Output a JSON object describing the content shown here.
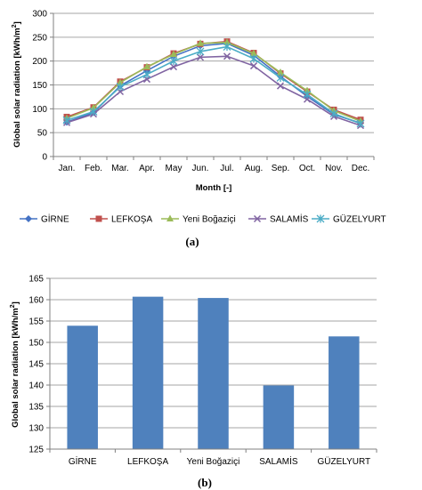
{
  "chart_data": [
    {
      "type": "line",
      "panel_label": "(a)",
      "xlabel": "Month [-]",
      "ylabel": "Global solar radiation [kWh/m²]",
      "ylabel_main": "Global solar radiation  [kWh/m",
      "ylabel_sup": "2",
      "ylabel_end": "]",
      "ylim": [
        0,
        300
      ],
      "yticks": [
        "0",
        "50",
        "100",
        "150",
        "200",
        "250",
        "300"
      ],
      "categories": [
        "Jan.",
        "Feb.",
        "Mar.",
        "Apr.",
        "May",
        "Jun.",
        "Jul.",
        "Aug.",
        "Sep.",
        "Oct.",
        "Nov.",
        "Dec."
      ],
      "grid": "horizontal",
      "legend": "bottom",
      "series": [
        {
          "name": "GİRNE",
          "color": "#4472c4",
          "marker": "diamond",
          "values": [
            72,
            92,
            148,
            180,
            210,
            232,
            237,
            212,
            168,
            126,
            88,
            70
          ]
        },
        {
          "name": "LEFKOŞA",
          "color": "#c0504d",
          "marker": "square",
          "values": [
            83,
            103,
            157,
            187,
            216,
            236,
            241,
            217,
            174,
            136,
            98,
            77
          ]
        },
        {
          "name": "Yeni Boğaziçi",
          "color": "#9bbb59",
          "marker": "triangle",
          "values": [
            80,
            102,
            155,
            188,
            214,
            237,
            239,
            216,
            176,
            138,
            96,
            74
          ]
        },
        {
          "name": "SALAMİS",
          "color": "#8064a2",
          "marker": "x",
          "values": [
            71,
            89,
            136,
            162,
            188,
            208,
            210,
            190,
            148,
            120,
            84,
            65
          ]
        },
        {
          "name": "GÜZELYURT",
          "color": "#4bacc6",
          "marker": "star",
          "values": [
            76,
            94,
            146,
            172,
            200,
            220,
            230,
            205,
            165,
            130,
            90,
            69
          ]
        }
      ]
    },
    {
      "type": "bar",
      "panel_label": "(b)",
      "ylabel": "Global solar radiation [kWh/m²]",
      "ylabel_main": "Global solar radiation  [kWh/m",
      "ylabel_sup": "2",
      "ylabel_end": "]",
      "ylim": [
        125,
        165
      ],
      "yticks": [
        "125",
        "130",
        "135",
        "140",
        "145",
        "150",
        "155",
        "160",
        "165"
      ],
      "categories": [
        "GİRNE",
        "LEFKOŞA",
        "Yeni Boğaziçi",
        "SALAMİS",
        "GÜZELYURT"
      ],
      "values": [
        153.9,
        160.7,
        160.4,
        139.9,
        151.4
      ],
      "color": "#4f81bd",
      "grid": "horizontal"
    }
  ]
}
